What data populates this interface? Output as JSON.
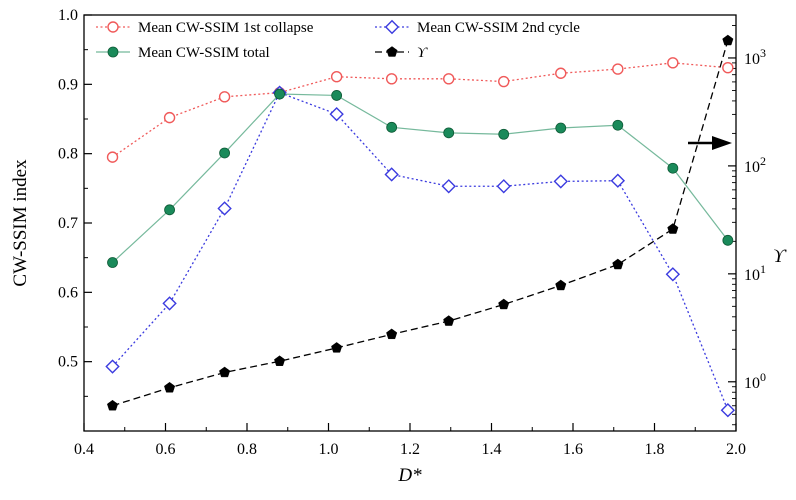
{
  "chart_data": {
    "type": "line",
    "xlabel": "D*",
    "ylabel": "CW-SSIM index",
    "y2label": "ϒ",
    "xlim": [
      0.4,
      2.0
    ],
    "ylim": [
      0.4,
      1.0
    ],
    "y2lim": [
      0.35,
      2500
    ],
    "y2scale": "log",
    "xticks": [
      "0.4",
      "0.6",
      "0.8",
      "1.0",
      "1.2",
      "1.4",
      "1.6",
      "1.8",
      "2.0"
    ],
    "yticks": [
      "0.5",
      "0.6",
      "0.7",
      "0.8",
      "0.9",
      "1.0"
    ],
    "y2ticks": [
      {
        "base": "10",
        "exp": "0"
      },
      {
        "base": "10",
        "exp": "1"
      },
      {
        "base": "10",
        "exp": "2"
      },
      {
        "base": "10",
        "exp": "3"
      }
    ],
    "legend_position": "top",
    "arrow_direction": "right",
    "x": [
      0.47,
      0.61,
      0.745,
      0.88,
      1.02,
      1.155,
      1.295,
      1.43,
      1.57,
      1.71,
      1.845,
      1.98
    ],
    "series": [
      {
        "name": "Mean CW-SSIM 1st collapse",
        "axis": "left",
        "color": "#f05a5a",
        "marker": "open-circle",
        "line": "dotted",
        "values": [
          0.795,
          0.852,
          0.882,
          0.888,
          0.911,
          0.908,
          0.908,
          0.904,
          0.916,
          0.922,
          0.931,
          0.924
        ]
      },
      {
        "name": "Mean CW-SSIM 2nd cycle",
        "axis": "left",
        "color": "#3b3bdf",
        "marker": "open-diamond",
        "line": "dotted",
        "values": [
          0.493,
          0.584,
          0.721,
          0.888,
          0.857,
          0.77,
          0.753,
          0.753,
          0.76,
          0.761,
          0.626,
          0.43
        ]
      },
      {
        "name": "Mean CW-SSIM total",
        "axis": "left",
        "color": "#1a8a5a",
        "marker": "filled-circle",
        "line": "solid",
        "values": [
          0.643,
          0.719,
          0.801,
          0.886,
          0.884,
          0.838,
          0.83,
          0.828,
          0.837,
          0.841,
          0.779,
          0.675
        ]
      },
      {
        "name": "ϒ",
        "axis": "right",
        "color": "#000000",
        "marker": "filled-pentagon",
        "line": "dashed",
        "values": [
          0.6,
          0.88,
          1.22,
          1.55,
          2.06,
          2.75,
          3.65,
          5.2,
          7.8,
          12.2,
          26,
          1450
        ]
      }
    ]
  }
}
